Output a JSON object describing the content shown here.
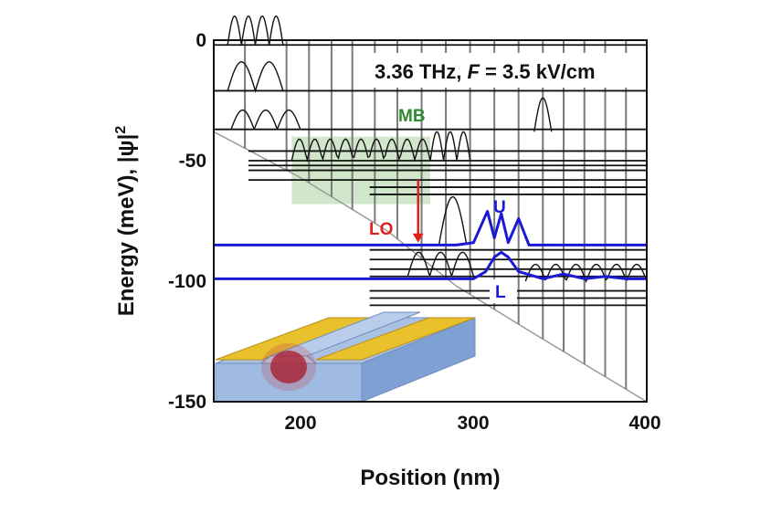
{
  "chart_data": {
    "type": "line",
    "title": "",
    "xlabel": "Position (nm)",
    "ylabel_main": "Energy (meV), |ψ|",
    "ylabel_sup": "2",
    "xlim": [
      150,
      400
    ],
    "ylim": [
      -150,
      0
    ],
    "x_ticks": [
      200,
      300,
      400
    ],
    "y_ticks": [
      0,
      -50,
      -100,
      -150
    ],
    "grid": false,
    "annotation_prefix": "3.36 THz, ",
    "annotation_var": "F",
    "annotation_suffix": " = 3.5 kV/cm",
    "labels": {
      "mb": "MB",
      "lo": "LO",
      "u": "U",
      "l": "L"
    },
    "colors": {
      "mb": "#2e8b2e",
      "lo": "#e0201b",
      "ul": "#1a1ad6",
      "mb_fill": "#c9e3c2",
      "curves": "#111111",
      "barriers": "#7a7a7a"
    },
    "conduction_band_edge": {
      "x": [
        150,
        200,
        250,
        290,
        340,
        400
      ],
      "y": [
        -38,
        -57,
        -79,
        -102,
        -124,
        -150
      ]
    },
    "barrier_positions_nm": [
      168,
      192,
      205,
      218,
      230,
      243,
      256,
      270,
      284,
      298,
      312,
      326,
      340,
      352,
      364,
      376,
      388,
      400
    ],
    "energy_levels_meV": [
      -2,
      -21,
      -37,
      -46,
      -50,
      -52,
      -54,
      -58,
      -61,
      -64,
      -87,
      -91,
      -95,
      -98,
      -104,
      -107,
      -110
    ],
    "upper_level_U": {
      "energy_meV": -85,
      "x": [
        150,
        290,
        300,
        308,
        312,
        316,
        320,
        326,
        332,
        400
      ],
      "y": [
        -85,
        -85,
        -84,
        -71,
        -82,
        -72,
        -84,
        -74,
        -85,
        -85
      ]
    },
    "lower_level_L": {
      "energy_meV": -99,
      "x": [
        150,
        300,
        307,
        312,
        316,
        320,
        326,
        340,
        352,
        364,
        376,
        388,
        400
      ],
      "y": [
        -99,
        -99,
        -96,
        -90,
        -88,
        -90,
        -96,
        -99,
        -97,
        -99,
        -98,
        -99,
        -99
      ]
    },
    "mb_region": {
      "x": [
        195,
        275
      ],
      "y": [
        -68,
        -40
      ]
    },
    "lo_arrow": {
      "x": 268,
      "y_from": -58,
      "y_to": -84
    }
  }
}
